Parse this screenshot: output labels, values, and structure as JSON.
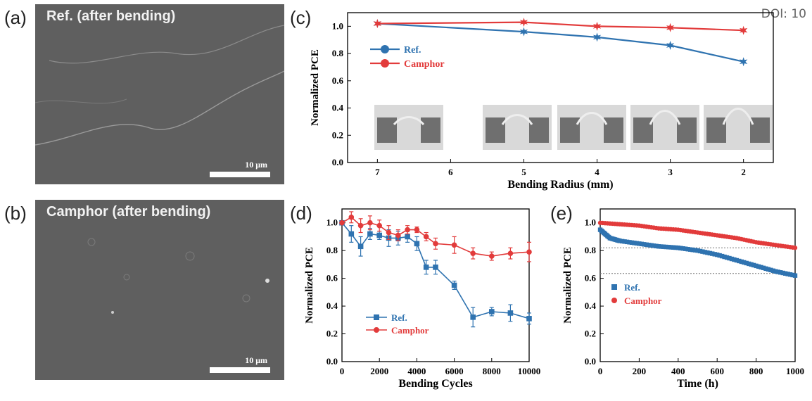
{
  "doi_text": "DOI: 10",
  "panels": {
    "a": {
      "label": "(a)",
      "title": "Ref. (after bending)",
      "scale_text": "10 μm"
    },
    "b": {
      "label": "(b)",
      "title": "Camphor (after bending)",
      "scale_text": "10 μm"
    },
    "c": {
      "label": "(c)"
    },
    "d": {
      "label": "(d)"
    },
    "e": {
      "label": "(e)"
    }
  },
  "colors": {
    "ref": "#2f73b0",
    "camphor": "#e23b3b"
  },
  "chart_data": [
    {
      "id": "c",
      "type": "line",
      "xlabel": "Bending Radius (mm)",
      "ylabel": "Normalized PCE",
      "x_ticks": [
        "7",
        "6",
        "5",
        "4",
        "3",
        "2"
      ],
      "ylim": [
        0,
        1.1
      ],
      "y_ticks": [
        "0.0",
        "0.2",
        "0.4",
        "0.6",
        "0.8",
        "1.0"
      ],
      "legend_position": "upper-left",
      "series": [
        {
          "name": "Ref.",
          "x": [
            7,
            5,
            4,
            3,
            2
          ],
          "values": [
            1.02,
            0.96,
            0.92,
            0.86,
            0.74
          ],
          "errors": [
            0.02,
            0.015,
            0.015,
            0.015,
            0.015
          ]
        },
        {
          "name": "Camphor",
          "x": [
            7,
            5,
            4,
            3,
            2
          ],
          "values": [
            1.02,
            1.03,
            1.0,
            0.99,
            0.97
          ],
          "errors": [
            0.02,
            0.02,
            0.02,
            0.015,
            0.015
          ]
        }
      ],
      "insets": 5
    },
    {
      "id": "d",
      "type": "line",
      "xlabel": "Bending Cycles",
      "ylabel": "Normalized PCE",
      "xlim": [
        0,
        10000
      ],
      "x_ticks": [
        "0",
        "2000",
        "4000",
        "6000",
        "8000",
        "10000"
      ],
      "ylim": [
        0,
        1.1
      ],
      "y_ticks": [
        "0.0",
        "0.2",
        "0.4",
        "0.6",
        "0.8",
        "1.0"
      ],
      "legend_position": "lower-middle",
      "series": [
        {
          "name": "Ref.",
          "x": [
            0,
            500,
            1000,
            1500,
            2000,
            2500,
            3000,
            3500,
            4000,
            4500,
            5000,
            6000,
            7000,
            8000,
            9000,
            10000
          ],
          "values": [
            1.0,
            0.92,
            0.83,
            0.92,
            0.91,
            0.89,
            0.89,
            0.9,
            0.85,
            0.68,
            0.68,
            0.55,
            0.32,
            0.36,
            0.35,
            0.31
          ],
          "errors": [
            0.01,
            0.06,
            0.07,
            0.04,
            0.03,
            0.06,
            0.05,
            0.04,
            0.05,
            0.05,
            0.05,
            0.03,
            0.07,
            0.03,
            0.06,
            0.04
          ]
        },
        {
          "name": "Camphor",
          "x": [
            0,
            500,
            1000,
            1500,
            2000,
            2500,
            3000,
            3500,
            4000,
            4500,
            5000,
            6000,
            7000,
            8000,
            9000,
            10000
          ],
          "values": [
            1.0,
            1.04,
            0.98,
            1.0,
            0.98,
            0.93,
            0.91,
            0.95,
            0.95,
            0.9,
            0.85,
            0.84,
            0.78,
            0.76,
            0.78,
            0.79
          ],
          "errors": [
            0.01,
            0.04,
            0.05,
            0.05,
            0.04,
            0.05,
            0.04,
            0.03,
            0.02,
            0.03,
            0.04,
            0.06,
            0.04,
            0.03,
            0.04,
            0.07
          ]
        }
      ]
    },
    {
      "id": "e",
      "type": "scatter",
      "xlabel": "Time (h)",
      "ylabel": "Normalized PCE",
      "xlim": [
        0,
        1000
      ],
      "x_ticks": [
        "0",
        "200",
        "400",
        "600",
        "800",
        "1000"
      ],
      "ylim": [
        0,
        1.1
      ],
      "y_ticks": [
        "0.0",
        "0.2",
        "0.4",
        "0.6",
        "0.8",
        "1.0"
      ],
      "legend_position": "center-left",
      "reference_lines": [
        0.82,
        0.635
      ],
      "series": [
        {
          "name": "Ref.",
          "marker": "square",
          "x": [
            0,
            50,
            100,
            200,
            300,
            400,
            500,
            600,
            700,
            800,
            900,
            1000
          ],
          "values": [
            0.95,
            0.89,
            0.87,
            0.85,
            0.83,
            0.82,
            0.8,
            0.77,
            0.73,
            0.69,
            0.65,
            0.62
          ]
        },
        {
          "name": "Camphor",
          "marker": "circle",
          "x": [
            0,
            100,
            200,
            300,
            400,
            500,
            600,
            700,
            800,
            900,
            1000
          ],
          "values": [
            1.0,
            0.99,
            0.98,
            0.96,
            0.95,
            0.93,
            0.91,
            0.89,
            0.86,
            0.84,
            0.82
          ]
        }
      ]
    }
  ]
}
